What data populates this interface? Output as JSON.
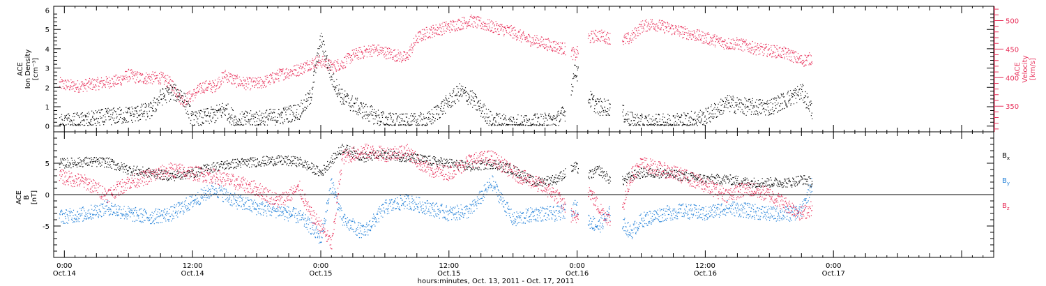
{
  "colors": {
    "black": "#000000",
    "density": "#000000",
    "velocity": "#e8305a",
    "bx": "#000000",
    "by": "#1f7fd8",
    "bz": "#e8305a"
  },
  "x_axis": {
    "label": "hours:minutes, Oct. 13, 2011 - Oct. 17, 2011",
    "range_hours": [
      -1.0,
      87.0
    ],
    "ticks": [
      {
        "t": 0,
        "time": "0:00",
        "date": "Oct.14"
      },
      {
        "t": 12,
        "time": "12:00",
        "date": "Oct.14"
      },
      {
        "t": 24,
        "time": "0:00",
        "date": "Oct.15"
      },
      {
        "t": 36,
        "time": "12:00",
        "date": "Oct.15"
      },
      {
        "t": 48,
        "time": "0:00",
        "date": "Oct.16"
      },
      {
        "t": 60,
        "time": "12:00",
        "date": "Oct.16"
      },
      {
        "t": 72,
        "time": "0:00",
        "date": "Oct.17"
      }
    ]
  },
  "panel_top": {
    "left_axis": {
      "label_lines": [
        "ACE",
        "Ion Density",
        "[cm⁻³]"
      ],
      "range": [
        -0.3,
        6.2
      ],
      "ticks": [
        "0",
        "1",
        "2",
        "3",
        "4",
        "5",
        "6"
      ]
    },
    "right_axis": {
      "label_lines": [
        "ACE",
        "Velocity",
        "[km/s]"
      ],
      "range": [
        305,
        525
      ],
      "ticks": [
        "350",
        "400",
        "450",
        "500"
      ]
    }
  },
  "panel_bottom": {
    "left_axis": {
      "label_lines": [
        "ACE",
        "B",
        "[nT]"
      ],
      "range": [
        -10,
        10
      ],
      "ticks": [
        "-5",
        "0",
        "5"
      ]
    },
    "legend": [
      {
        "base": "B",
        "sub": "x",
        "color_key": "bx"
      },
      {
        "base": "B",
        "sub": "y",
        "color_key": "by"
      },
      {
        "base": "B",
        "sub": "z",
        "color_key": "bz"
      }
    ]
  },
  "chart_data": [
    {
      "type": "scatter",
      "title": "",
      "xlabel": "hours:minutes, Oct. 13, 2011 - Oct. 17, 2011",
      "ylabel": "ACE Ion Density [cm⁻³]",
      "ylim": [
        -0.3,
        6.2
      ],
      "series": [
        {
          "name": "Ion Density",
          "x": [
            -0.5,
            2,
            4,
            6,
            8,
            9,
            10,
            11,
            12,
            14,
            15,
            16,
            18,
            20,
            22,
            23,
            24,
            25,
            26,
            28,
            30,
            32,
            34,
            35,
            36,
            37,
            38,
            40,
            42,
            44,
            46,
            47,
            47.8,
            49,
            50,
            51,
            52,
            53,
            54,
            56,
            58,
            60,
            62,
            64,
            66,
            68,
            69,
            70
          ],
          "y": [
            0.2,
            0.3,
            0.5,
            0.6,
            0.8,
            1.5,
            1.8,
            1.6,
            0.3,
            0.6,
            0.9,
            0.3,
            0.4,
            0.5,
            0.8,
            1.5,
            4.5,
            2.5,
            1.5,
            0.8,
            0.3,
            0.2,
            0.3,
            0.8,
            1.3,
            1.8,
            1.5,
            0.3,
            0.2,
            0.2,
            0.3,
            0.8,
            3.0,
            1.5,
            1.0,
            1.0,
            0.8,
            0.3,
            0.2,
            0.2,
            0.3,
            0.5,
            1.2,
            1.0,
            1.0,
            1.5,
            1.8,
            0.8
          ]
        }
      ]
    },
    {
      "type": "scatter",
      "ylabel": "ACE Velocity [km/s]",
      "ylim": [
        305,
        525
      ],
      "series": [
        {
          "name": "Velocity",
          "x": [
            -0.5,
            1,
            3,
            5,
            6,
            7,
            9,
            10,
            11,
            12,
            13,
            14,
            15,
            16,
            17,
            18,
            19,
            20,
            21,
            22,
            23,
            24,
            25,
            26,
            27,
            28,
            29,
            30,
            31,
            32,
            33,
            34,
            35,
            36,
            37,
            38,
            39,
            40,
            41,
            42,
            43,
            44,
            45,
            46,
            47,
            47.8,
            49,
            50,
            51,
            52,
            53,
            54,
            55,
            56,
            57,
            58,
            59,
            60,
            61,
            62,
            63,
            64,
            65,
            66,
            67,
            68,
            69,
            70
          ],
          "y": [
            390,
            385,
            390,
            395,
            405,
            400,
            400,
            390,
            360,
            370,
            385,
            385,
            405,
            395,
            390,
            390,
            395,
            405,
            410,
            415,
            425,
            430,
            420,
            425,
            440,
            445,
            450,
            445,
            440,
            435,
            470,
            480,
            485,
            490,
            495,
            500,
            495,
            490,
            485,
            480,
            470,
            465,
            460,
            455,
            450,
            440,
            470,
            475,
            470,
            465,
            470,
            490,
            495,
            490,
            485,
            480,
            475,
            470,
            465,
            460,
            460,
            455,
            450,
            448,
            445,
            440,
            430,
            435
          ]
        }
      ]
    },
    {
      "type": "scatter",
      "ylabel": "ACE B [nT]",
      "ylim": [
        -10,
        10
      ],
      "series": [
        {
          "name": "Bx",
          "x": [
            -0.5,
            2,
            4,
            6,
            8,
            10,
            12,
            14,
            16,
            18,
            20,
            22,
            24,
            26,
            28,
            30,
            32,
            34,
            36,
            38,
            40,
            42,
            44,
            46,
            47.8,
            49,
            50,
            51,
            52,
            53,
            54,
            56,
            58,
            60,
            62,
            64,
            66,
            68,
            69,
            70
          ],
          "y": [
            5.0,
            5.3,
            5.2,
            4.0,
            3.5,
            3.0,
            3.5,
            4.5,
            5.0,
            5.3,
            5.5,
            5.3,
            3.5,
            7.5,
            6.0,
            6.5,
            6.0,
            5.5,
            5.0,
            4.5,
            5.0,
            4.0,
            2.0,
            2.5,
            4.5,
            3.0,
            4.0,
            2.5,
            2.0,
            3.0,
            3.5,
            3.5,
            3.0,
            2.5,
            2.5,
            2.0,
            2.0,
            2.0,
            2.5,
            2.0
          ]
        },
        {
          "name": "By",
          "x": [
            -0.5,
            2,
            4,
            6,
            8,
            10,
            12,
            14,
            16,
            18,
            20,
            22,
            23,
            24,
            25,
            26,
            28,
            30,
            32,
            34,
            36,
            38,
            40,
            42,
            44,
            46,
            47.8,
            49,
            50,
            51,
            52,
            53,
            54,
            56,
            58,
            60,
            62,
            64,
            66,
            68,
            69,
            70
          ],
          "y": [
            -3.5,
            -3.0,
            -2.0,
            -3.0,
            -3.5,
            -3.0,
            -1.0,
            1.0,
            -1.0,
            -2.0,
            -2.5,
            -3.5,
            -5.0,
            -7.0,
            2.0,
            -4.0,
            -6.0,
            -2.0,
            -1.0,
            -2.0,
            -3.0,
            -2.5,
            2.0,
            -4.0,
            -3.0,
            -3.0,
            -2.0,
            -4.0,
            -5.0,
            -3.0,
            -4.0,
            -6.0,
            -4.0,
            -3.0,
            -2.5,
            -3.0,
            -2.0,
            -2.5,
            -3.0,
            -3.0,
            -2.5,
            2.0
          ]
        },
        {
          "name": "Bz",
          "x": [
            -0.5,
            2,
            4,
            6,
            8,
            10,
            12,
            14,
            16,
            18,
            20,
            22,
            23,
            24,
            25,
            26,
            28,
            30,
            32,
            34,
            36,
            38,
            40,
            42,
            44,
            46,
            47.8,
            49,
            50,
            51,
            52,
            53,
            54,
            56,
            58,
            60,
            62,
            64,
            66,
            68,
            69,
            70
          ],
          "y": [
            3.0,
            2.0,
            0.0,
            2.0,
            3.0,
            4.0,
            3.5,
            3.0,
            2.0,
            1.0,
            -1.0,
            1.0,
            -3.0,
            -5.0,
            -8.0,
            6.0,
            7.0,
            6.5,
            7.0,
            4.0,
            3.5,
            5.5,
            6.0,
            3.5,
            2.0,
            0.0,
            -4.0,
            1.0,
            -2.0,
            -4.0,
            -3.5,
            3.0,
            5.0,
            4.0,
            3.0,
            1.5,
            0.0,
            1.0,
            0.0,
            -2.0,
            -3.0,
            -2.0
          ]
        }
      ]
    }
  ]
}
